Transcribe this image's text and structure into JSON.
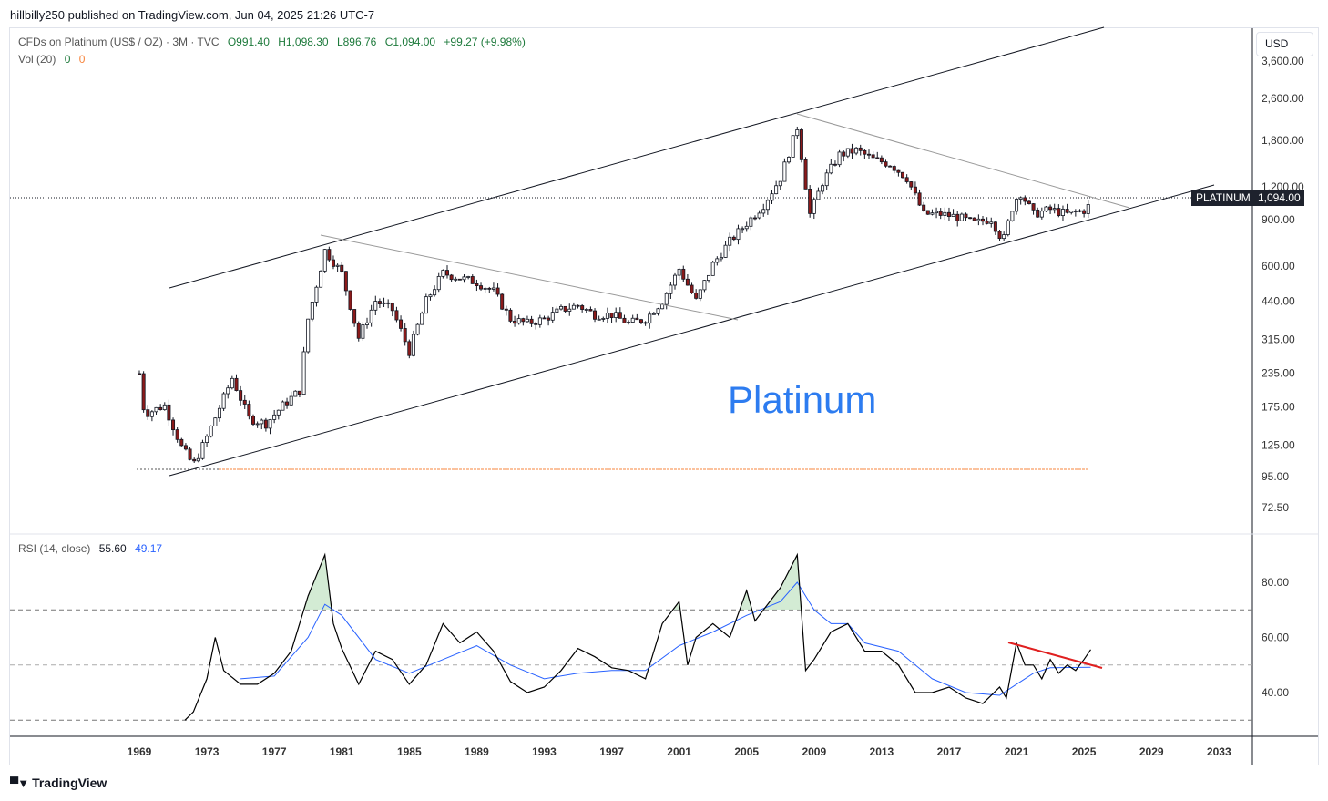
{
  "published": "hillbilly250 published on TradingView.com, Jun 04, 2025 21:26 UTC-7",
  "legend": {
    "symbol": "CFDs on Platinum (US$ / OZ) · 3M · TVC",
    "open": "O991.40",
    "high": "H1,098.30",
    "low": "L896.76",
    "close": "C1,094.00",
    "change": "+99.27 (+9.98%)",
    "vol_label": "Vol (20)",
    "vol_a": "0",
    "vol_b": "0"
  },
  "rsi_legend": {
    "label": "RSI (14, close)",
    "value": "55.60",
    "ma_value": "49.17"
  },
  "currency": "USD",
  "price_tag": {
    "name": "PLATINUM",
    "value": "1,094.00"
  },
  "annotation_text": "Platinum",
  "brand": "TradingView",
  "colors": {
    "up": "#ffffff",
    "down": "#8b1a1a",
    "rsi": "#000000",
    "rsi_ma": "#2962ff",
    "trend": "#e02020",
    "support": "#f7843c",
    "text_blue": "#2d7cf0"
  },
  "chart_data": [
    {
      "type": "candlestick",
      "title": "CFDs on Platinum (US$ / OZ) · 3M · TVC",
      "scale": "log",
      "price_ticks": [
        "3,600.00",
        "2,600.00",
        "1,800.00",
        "1,200.00",
        "900.00",
        "600.00",
        "440.00",
        "315.00",
        "235.00",
        "175.00",
        "125.00",
        "95.00",
        "72.50"
      ],
      "price_tick_values": [
        3600,
        2600,
        1800,
        1200,
        900,
        600,
        440,
        315,
        235,
        175,
        125,
        95,
        72.5
      ],
      "x_ticks": [
        "1969",
        "1973",
        "1977",
        "1981",
        "1985",
        "1989",
        "1993",
        "1997",
        "2001",
        "2005",
        "2009",
        "2013",
        "2017",
        "2021",
        "2025",
        "2029",
        "2033"
      ],
      "approx_closes": [
        [
          1969.0,
          234
        ],
        [
          1969.3,
          164
        ],
        [
          1970.5,
          177
        ],
        [
          1971.5,
          123
        ],
        [
          1972.2,
          105
        ],
        [
          1973,
          134
        ],
        [
          1974.5,
          225
        ],
        [
          1975.5,
          158
        ],
        [
          1976.5,
          151
        ],
        [
          1977.5,
          177
        ],
        [
          1978.5,
          202
        ],
        [
          1979,
          377
        ],
        [
          1980,
          687
        ],
        [
          1981,
          563
        ],
        [
          1982,
          320
        ],
        [
          1983,
          442
        ],
        [
          1984,
          408
        ],
        [
          1985,
          284
        ],
        [
          1986,
          442
        ],
        [
          1987,
          563
        ],
        [
          1988,
          540
        ],
        [
          1989,
          520
        ],
        [
          1990,
          480
        ],
        [
          1991,
          377
        ],
        [
          1992,
          363
        ],
        [
          1993,
          377
        ],
        [
          1994,
          408
        ],
        [
          1995,
          425
        ],
        [
          1996,
          392
        ],
        [
          1997,
          392
        ],
        [
          1998,
          363
        ],
        [
          1999,
          377
        ],
        [
          2000,
          442
        ],
        [
          2001,
          585
        ],
        [
          2002,
          442
        ],
        [
          2003,
          608
        ],
        [
          2004,
          744
        ],
        [
          2005,
          872
        ],
        [
          2006,
          1025
        ],
        [
          2007,
          1295
        ],
        [
          2008,
          2019
        ],
        [
          2008.75,
          944
        ],
        [
          2009.5,
          1249
        ],
        [
          2010.5,
          1587
        ],
        [
          2011.5,
          1651
        ],
        [
          2012.5,
          1526
        ],
        [
          2013.5,
          1465
        ],
        [
          2014.5,
          1295
        ],
        [
          2015.5,
          944
        ],
        [
          2016.5,
          944
        ],
        [
          2017.5,
          921
        ],
        [
          2018.5,
          872
        ],
        [
          2019.5,
          907
        ],
        [
          2020.2,
          744
        ],
        [
          2020.8,
          1025
        ],
        [
          2021.2,
          1150
        ],
        [
          2022,
          944
        ],
        [
          2023,
          983
        ],
        [
          2024,
          944
        ],
        [
          2025.2,
          983
        ],
        [
          2025.4,
          1094
        ]
      ],
      "last_price": 1094.0,
      "support_level": 95
    },
    {
      "type": "line",
      "title": "RSI (14, close)",
      "y_ticks": [
        "80.00",
        "60.00",
        "40.00"
      ],
      "y_tick_values": [
        80,
        60,
        40
      ],
      "bands": [
        70,
        50,
        30
      ],
      "series": [
        {
          "name": "RSI",
          "points": [
            [
              1971.7,
              30
            ],
            [
              1972.2,
              33
            ],
            [
              1973,
              45
            ],
            [
              1973.5,
              60
            ],
            [
              1974,
              48
            ],
            [
              1975,
              43
            ],
            [
              1976,
              43
            ],
            [
              1977,
              47
            ],
            [
              1978,
              55
            ],
            [
              1979,
              75
            ],
            [
              1980,
              90
            ],
            [
              1980.5,
              65
            ],
            [
              1981,
              56
            ],
            [
              1982,
              43
            ],
            [
              1983,
              55
            ],
            [
              1984,
              52
            ],
            [
              1985,
              43
            ],
            [
              1986,
              50
            ],
            [
              1987,
              65
            ],
            [
              1988,
              58
            ],
            [
              1989,
              62
            ],
            [
              1990,
              55
            ],
            [
              1991,
              44
            ],
            [
              1992,
              40
            ],
            [
              1993,
              42
            ],
            [
              1994,
              48
            ],
            [
              1995,
              56
            ],
            [
              1996,
              53
            ],
            [
              1997,
              49
            ],
            [
              1998,
              48
            ],
            [
              1999,
              45
            ],
            [
              2000,
              65
            ],
            [
              2001,
              73
            ],
            [
              2001.5,
              50
            ],
            [
              2002,
              60
            ],
            [
              2003,
              65
            ],
            [
              2004,
              60
            ],
            [
              2005,
              77
            ],
            [
              2005.5,
              66
            ],
            [
              2006,
              70
            ],
            [
              2007,
              78
            ],
            [
              2008,
              90
            ],
            [
              2008.5,
              48
            ],
            [
              2009,
              52
            ],
            [
              2010,
              62
            ],
            [
              2011,
              65
            ],
            [
              2012,
              55
            ],
            [
              2013,
              55
            ],
            [
              2014,
              50
            ],
            [
              2015,
              40
            ],
            [
              2016,
              40
            ],
            [
              2017,
              42
            ],
            [
              2018,
              38
            ],
            [
              2019,
              36
            ],
            [
              2020,
              42
            ],
            [
              2020.4,
              38
            ],
            [
              2021,
              58
            ],
            [
              2021.5,
              50
            ],
            [
              2022,
              50
            ],
            [
              2022.5,
              45
            ],
            [
              2023,
              52
            ],
            [
              2023.5,
              47
            ],
            [
              2024,
              50
            ],
            [
              2024.5,
              48
            ],
            [
              2025,
              52
            ],
            [
              2025.4,
              55.6
            ]
          ]
        },
        {
          "name": "RSI MA",
          "points": [
            [
              1975,
              45
            ],
            [
              1977,
              46
            ],
            [
              1979,
              60
            ],
            [
              1980,
              72
            ],
            [
              1981,
              68
            ],
            [
              1983,
              52
            ],
            [
              1985,
              47
            ],
            [
              1987,
              52
            ],
            [
              1989,
              57
            ],
            [
              1991,
              50
            ],
            [
              1993,
              45
            ],
            [
              1995,
              47
            ],
            [
              1997,
              48
            ],
            [
              1999,
              48
            ],
            [
              2001,
              57
            ],
            [
              2003,
              62
            ],
            [
              2005,
              68
            ],
            [
              2007,
              73
            ],
            [
              2008,
              80
            ],
            [
              2009,
              70
            ],
            [
              2010,
              65
            ],
            [
              2011,
              65
            ],
            [
              2012,
              58
            ],
            [
              2014,
              55
            ],
            [
              2016,
              45
            ],
            [
              2018,
              40
            ],
            [
              2020,
              39
            ],
            [
              2021,
              43
            ],
            [
              2022,
              47
            ],
            [
              2023,
              49
            ],
            [
              2025.4,
              49.17
            ]
          ]
        }
      ]
    }
  ]
}
